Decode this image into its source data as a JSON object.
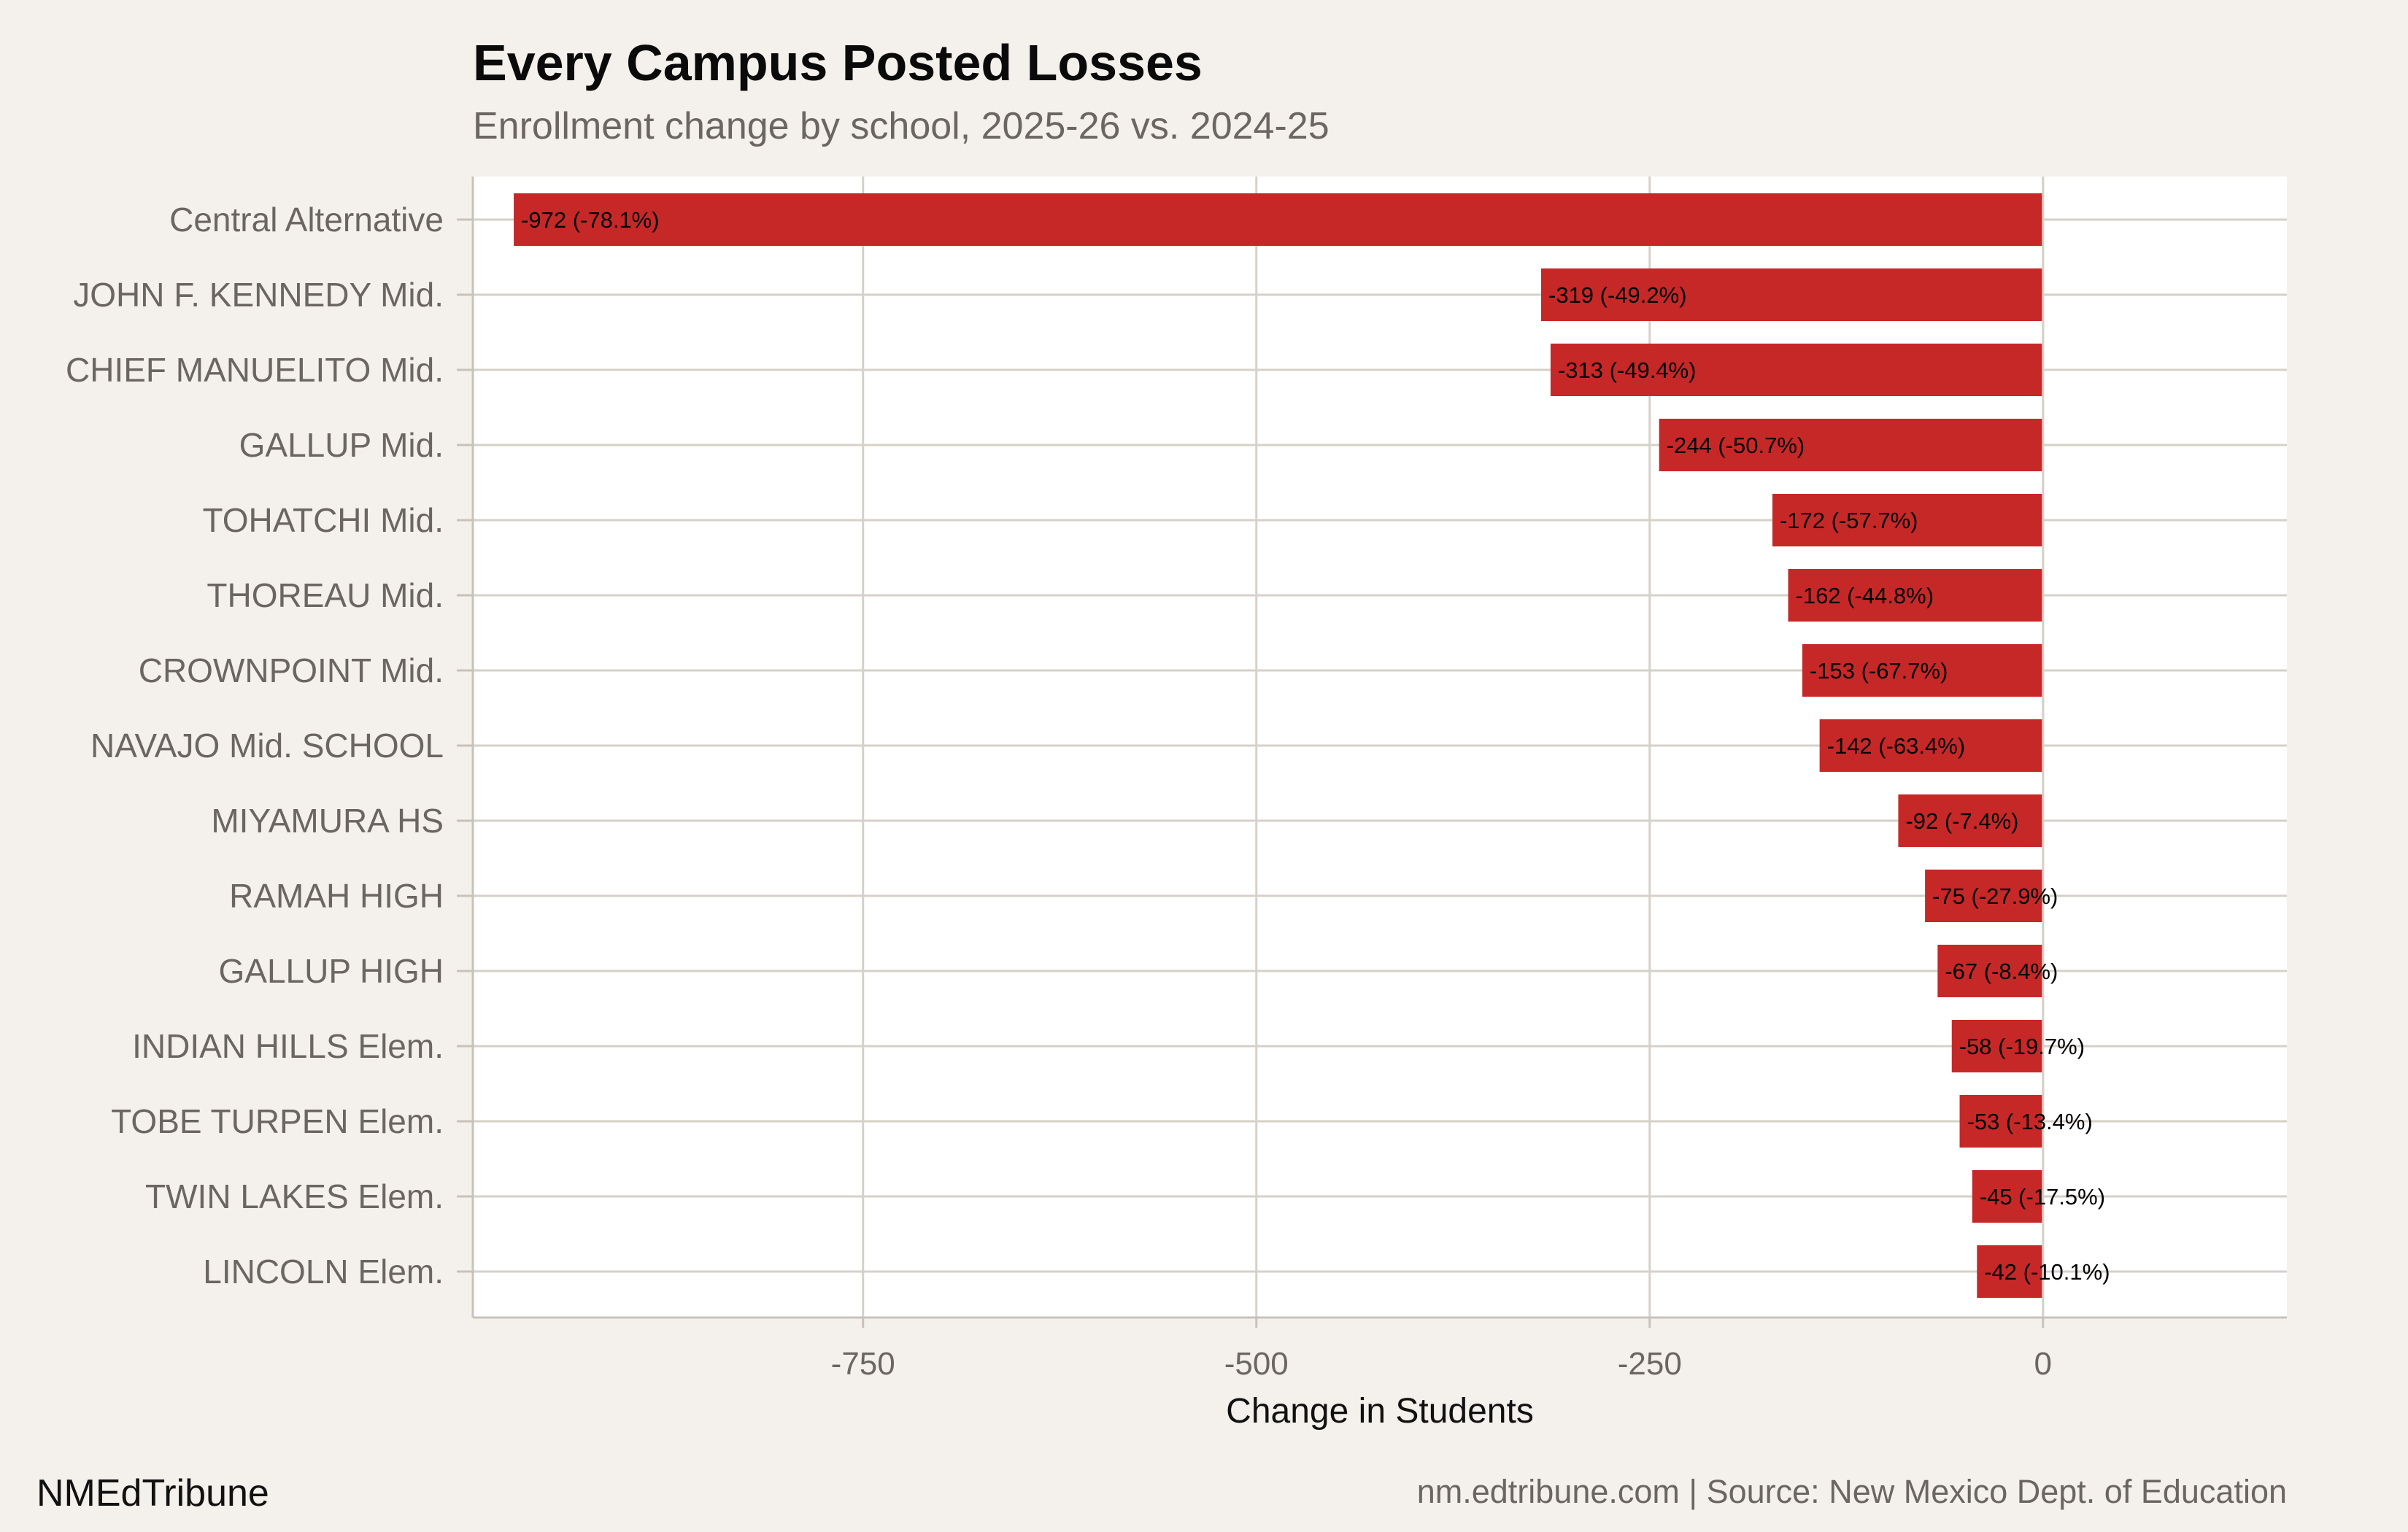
{
  "chart_data": {
    "type": "bar",
    "orientation": "horizontal",
    "title": "Every Campus Posted Losses",
    "subtitle": "Enrollment change by school, 2025-26 vs. 2024-25",
    "xlabel": "Change in Students",
    "ylabel": "",
    "xlim": [
      -998,
      155
    ],
    "xticks": [
      -750,
      -500,
      -250,
      0
    ],
    "xtick_labels": [
      "-750",
      "-500",
      "-250",
      "0"
    ],
    "grid": true,
    "bar_color": "#c62828",
    "categories": [
      "Central Alternative",
      "JOHN F. KENNEDY Mid.",
      "CHIEF MANUELITO Mid.",
      "GALLUP Mid.",
      "TOHATCHI Mid.",
      "THOREAU Mid.",
      "CROWNPOINT Mid.",
      "NAVAJO Mid. SCHOOL",
      "MIYAMURA HS",
      "RAMAH HIGH",
      "GALLUP HIGH",
      "INDIAN HILLS Elem.",
      "TOBE TURPEN Elem.",
      "TWIN LAKES Elem.",
      "LINCOLN Elem."
    ],
    "values": [
      -972,
      -319,
      -313,
      -244,
      -172,
      -162,
      -153,
      -142,
      -92,
      -75,
      -67,
      -58,
      -53,
      -45,
      -42
    ],
    "data_labels": [
      "-972 (-78.1%)",
      "-319 (-49.2%)",
      "-313 (-49.4%)",
      "-244 (-50.7%)",
      "-172 (-57.7%)",
      "-162 (-44.8%)",
      "-153 (-67.7%)",
      "-142 (-63.4%)",
      "-92 (-7.4%)",
      "-75 (-27.9%)",
      "-67 (-8.4%)",
      "-58 (-19.7%)",
      "-53 (-13.4%)",
      "-45 (-17.5%)",
      "-42 (-10.1%)"
    ]
  },
  "footer": {
    "brand": "NMEdTribune",
    "caption": "nm.edtribune.com | Source: New Mexico Dept. of Education"
  }
}
